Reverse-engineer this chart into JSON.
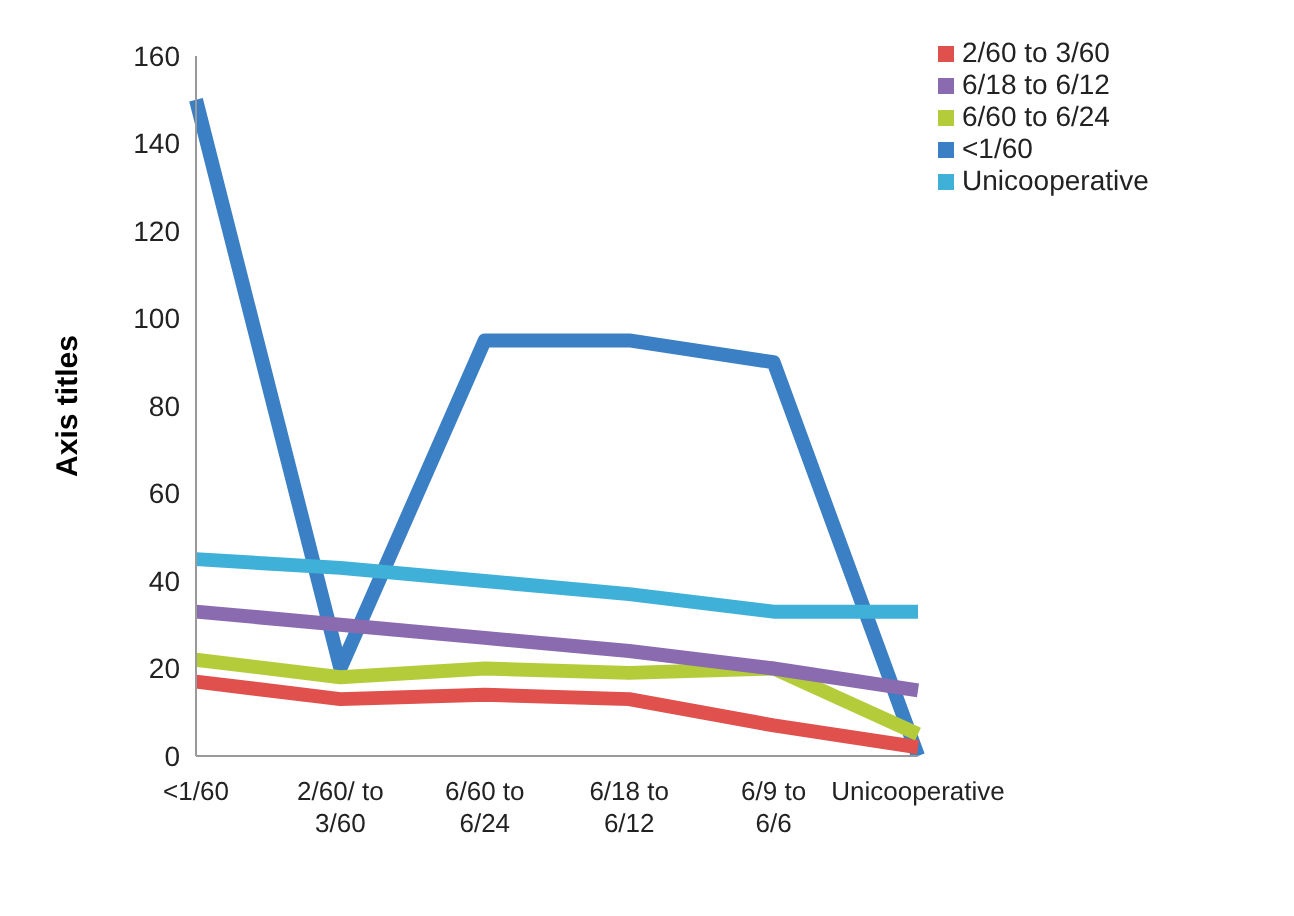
{
  "chart_data": {
    "type": "line",
    "ylabel": "Axis titles",
    "categories": [
      "<1/60",
      "2/60/ to 3/60",
      "6/60 to 6/24",
      "6/18 to 6/12",
      "6/9 to 6/6",
      "Unicooperative"
    ],
    "series": [
      {
        "name": "<1/60",
        "color": "#3b7fc4",
        "values": [
          150,
          20,
          95,
          95,
          90,
          0
        ]
      },
      {
        "name": "2/60 to 3/60",
        "color": "#e0504d",
        "values": [
          17,
          13,
          14,
          13,
          7,
          2
        ]
      },
      {
        "name": "6/60 to 6/24",
        "color": "#b5cc3a",
        "values": [
          22,
          18,
          20,
          19,
          20,
          5
        ]
      },
      {
        "name": "6/18 to 6/12",
        "color": "#8a6bb0",
        "values": [
          33,
          30,
          27,
          24,
          20,
          15
        ]
      },
      {
        "name": "Unicooperative",
        "color": "#3fb0d8",
        "values": [
          45,
          43,
          40,
          37,
          33,
          33
        ]
      }
    ],
    "ylim": [
      0,
      160
    ],
    "yticks": [
      0,
      20,
      40,
      60,
      80,
      100,
      120,
      140,
      160
    ],
    "grid": false,
    "legend": "top right",
    "marker": "none",
    "line_style": "solid"
  }
}
